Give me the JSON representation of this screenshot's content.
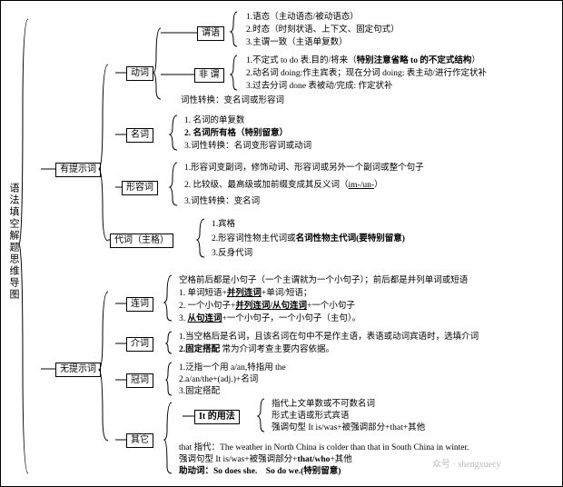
{
  "colors": {
    "border": "#000000",
    "text": "#000000",
    "bg": "#ffffff",
    "watermark": "#bbbbbb"
  },
  "root_title": "语法填空解题思维导图",
  "branches": {
    "with_hint": {
      "label": "有提示词",
      "children": {
        "verb": {
          "label": "动词",
          "predicate": {
            "label": "谓语",
            "items": [
              "1.语态（主动语态/被动语态）",
              "2.时态（时刻状语、上下文、固定句式）",
              "3.主谓一致（主语单复数）"
            ]
          },
          "nonpredicate": {
            "label": "非 谓",
            "items": [
              "1.不定式 to do 表.目的/将来（<b>特别注意省略 to 的不定式结构</b>）",
              "2.动名词 doing:作主宾表；现在分词 doing: 表主动/进行作定状补",
              "3.过去分词 done 表被动/完成: 作定状补"
            ]
          },
          "conversion": "词性转换：变名词或形容词"
        },
        "noun": {
          "label": "名词",
          "items": [
            "1. 名词的单复数",
            "<b>2. 名词所有格（特别留意）</b>",
            "3.词性转换：名词变形容词或动词"
          ]
        },
        "adj": {
          "label": "形容词",
          "items": [
            "1.形容词变副词，修饰动词、形容词或另外一个副词或整个句子",
            "2. 比较级、最高级或加前缀变成其反义词（<u>im-/un-</u>）",
            "3.词性转换：变名词"
          ]
        },
        "pron": {
          "label": "代词（主格）",
          "items": [
            "1.宾格",
            "2.形容词性物主代词或<b>名词性物主代词(要特别留意)</b>",
            "3.反身代词"
          ]
        }
      }
    },
    "without_hint": {
      "label": "无提示词",
      "children": {
        "conj": {
          "label": "连词",
          "intro": "空格前后都是小句子（一个主谓就为一个小句子）；前后都是并列单词或短语",
          "items": [
            "1. 单词短语+<b><u>并列连词</u></b>+单词/短语；",
            "2. 一个小句子+<b><u>并列连词/从句连词</u></b>+一个小句子",
            "3. <b><u>从句连词</u></b>+一个小句子，一个小句子（主句）。"
          ]
        },
        "prep": {
          "label": "介词",
          "items": [
            "1.当空格后是名词，且该名词在句中不是作主语，表语或动词宾语时，选填介词",
            "<b>2.固定搭配</b> 常为介词考查主要内容依据。"
          ]
        },
        "article": {
          "label": "冠词",
          "items": [
            "1.泛指一个用 a/an,特指用 the",
            "2.a/an/the+(adj.)+名词",
            "3.固定搭配"
          ]
        },
        "other": {
          "label": "其它",
          "it_usage": {
            "label": "It 的用法",
            "items": [
              "指代上文单数或不可数名词",
              "形式主语或形式宾语",
              "强调句型 It is/was+被强调部分+that+其他"
            ]
          },
          "tail": [
            "that 指代：The weather in North China is colder than that in South China in winter.",
            "强调句型 It is/was+被强调部分+<b>that/who</b>+其他",
            "<b>助动词：So does she.　So do we.(特别留意)</b>"
          ]
        }
      }
    }
  },
  "watermark": "众号 · shengxuecy"
}
